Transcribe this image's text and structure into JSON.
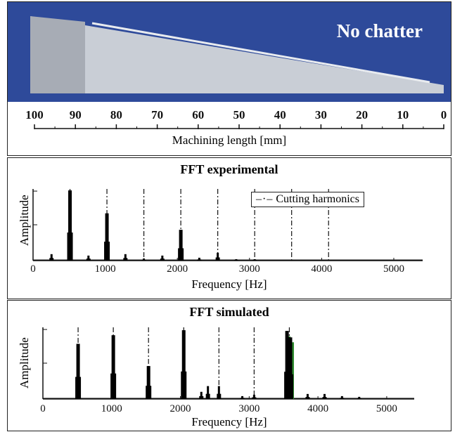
{
  "photo": {
    "label": "No chatter",
    "ruler_ticks": [
      "100",
      "90",
      "80",
      "70",
      "60",
      "50",
      "40",
      "30",
      "20",
      "10",
      "0"
    ],
    "ruler_label": "Machining length [mm]",
    "colors": {
      "background": "#2e4a9a",
      "workpiece": "#c9ced6"
    }
  },
  "chart_data": [
    {
      "type": "bar",
      "title": "FFT experimental",
      "xlabel": "Frequency [Hz]",
      "ylabel": "Amplitude",
      "xlim": [
        0,
        5400
      ],
      "ylim": [
        0,
        1
      ],
      "xticks": [
        "0",
        "1000",
        "2000",
        "3000",
        "4000",
        "5000"
      ],
      "legend": {
        "entry": "Cutting harmonics",
        "placement": "top-right"
      },
      "harmonics": [
        512,
        1024,
        1536,
        2048,
        2560,
        3072,
        3584,
        4096
      ],
      "peaks": [
        {
          "x": 256,
          "y": 0.09
        },
        {
          "x": 512,
          "y": 0.98
        },
        {
          "x": 768,
          "y": 0.07
        },
        {
          "x": 1024,
          "y": 0.66
        },
        {
          "x": 1280,
          "y": 0.09
        },
        {
          "x": 1536,
          "y": 0.03
        },
        {
          "x": 1792,
          "y": 0.07
        },
        {
          "x": 2048,
          "y": 0.43
        },
        {
          "x": 2304,
          "y": 0.04
        },
        {
          "x": 2560,
          "y": 0.11
        },
        {
          "x": 2816,
          "y": 0.02
        },
        {
          "x": 3072,
          "y": 0.02
        }
      ]
    },
    {
      "type": "bar",
      "title": "FFT simulated",
      "xlabel": "Frequency [Hz]",
      "ylabel": "Amplitude",
      "xlim": [
        0,
        5400
      ],
      "ylim": [
        0,
        1
      ],
      "xticks": [
        "0",
        "1000",
        "2000",
        "3000",
        "4000",
        "5000"
      ],
      "harmonics": [
        512,
        1024,
        1536,
        2048,
        2560,
        3072,
        3584
      ],
      "peaks": [
        {
          "x": 512,
          "y": 0.77
        },
        {
          "x": 1024,
          "y": 0.89
        },
        {
          "x": 1536,
          "y": 0.46
        },
        {
          "x": 2048,
          "y": 0.96
        },
        {
          "x": 2304,
          "y": 0.1
        },
        {
          "x": 2400,
          "y": 0.18
        },
        {
          "x": 2560,
          "y": 0.18
        },
        {
          "x": 2900,
          "y": 0.04
        },
        {
          "x": 3072,
          "y": 0.06
        },
        {
          "x": 3550,
          "y": 0.95
        },
        {
          "x": 3600,
          "y": 0.86
        },
        {
          "x": 3850,
          "y": 0.07
        },
        {
          "x": 4096,
          "y": 0.07
        },
        {
          "x": 4350,
          "y": 0.04
        },
        {
          "x": 4600,
          "y": 0.03
        }
      ],
      "colors": {
        "series_main": "#000000",
        "series_secondary": "#2e8b2e"
      }
    }
  ]
}
